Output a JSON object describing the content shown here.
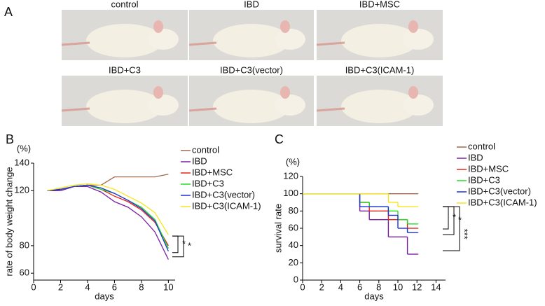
{
  "photo_panel": {
    "label": "A",
    "captions": [
      "control",
      "IBD",
      "IBD+MSC",
      "IBD+C3",
      "IBD+C3(vector)",
      "IBD+C3(ICAM-1)"
    ]
  },
  "chart_data": [
    {
      "type": "line",
      "panel_label": "B",
      "y_unit": "(%)",
      "ylabel": "rate of body weight change",
      "xlabel": "days",
      "x": [
        1,
        2,
        3,
        4,
        5,
        6,
        7,
        8,
        9,
        10
      ],
      "xlim": [
        0,
        10.5
      ],
      "xticks": [
        0,
        2,
        4,
        6,
        8,
        10
      ],
      "ylim": [
        55,
        140
      ],
      "yticks": [
        60,
        80,
        120,
        140
      ],
      "series": [
        {
          "name": "control",
          "color": "#9c6b4e",
          "values": [
            120,
            121,
            123,
            124,
            124,
            130,
            130,
            130,
            130,
            132
          ]
        },
        {
          "name": "IBD",
          "color": "#7a1fa2",
          "values": [
            120,
            120,
            123,
            123,
            119,
            112,
            108,
            101,
            90,
            70
          ]
        },
        {
          "name": "IBD+MSC",
          "color": "#e8221b",
          "values": [
            120,
            121,
            123,
            124,
            121,
            116,
            112,
            106,
            97,
            80
          ]
        },
        {
          "name": "IBD+C3",
          "color": "#22dd22",
          "values": [
            120,
            121,
            123,
            124,
            121,
            118,
            113,
            108,
            99,
            78
          ]
        },
        {
          "name": "IBD+C3(vector)",
          "color": "#1f2fd8",
          "values": [
            120,
            121,
            123,
            124,
            122,
            118,
            113,
            107,
            98,
            76
          ]
        },
        {
          "name": "IBD+C3(ICAM-1)",
          "color": "#f5e61e",
          "values": [
            120,
            122,
            124,
            125,
            124,
            121,
            116,
            111,
            104,
            88
          ]
        }
      ],
      "annotations": [
        "*",
        "*"
      ]
    },
    {
      "type": "step",
      "panel_label": "C",
      "y_unit": "(%)",
      "ylabel": "survival rate",
      "xlabel": "days",
      "x": [
        0,
        6,
        7,
        8,
        9,
        10,
        11,
        12
      ],
      "xlim": [
        0,
        15
      ],
      "xticks": [
        0,
        2,
        4,
        6,
        8,
        10,
        12,
        14
      ],
      "ylim": [
        0,
        120
      ],
      "yticks": [
        0,
        20,
        40,
        60,
        80,
        100,
        120
      ],
      "series": [
        {
          "name": "control",
          "color": "#9c6b4e",
          "values": [
            100,
            100,
            100,
            100,
            100,
            100,
            100,
            100
          ]
        },
        {
          "name": "IBD",
          "color": "#7a1fa2",
          "values": [
            100,
            80,
            70,
            70,
            50,
            50,
            30,
            30
          ]
        },
        {
          "name": "IBD+MSC",
          "color": "#e8221b",
          "values": [
            100,
            90,
            80,
            80,
            70,
            70,
            60,
            60
          ]
        },
        {
          "name": "IBD+C3",
          "color": "#22dd22",
          "values": [
            100,
            90,
            85,
            85,
            80,
            70,
            65,
            65
          ]
        },
        {
          "name": "IBD+C3(vector)",
          "color": "#1f2fd8",
          "values": [
            100,
            85,
            85,
            85,
            75,
            60,
            55,
            55
          ]
        },
        {
          "name": "IBD+C3(ICAM-1)",
          "color": "#f5e61e",
          "values": [
            100,
            100,
            100,
            100,
            90,
            85,
            85,
            85
          ]
        }
      ],
      "annotations": [
        "*",
        "*",
        "***"
      ]
    }
  ]
}
